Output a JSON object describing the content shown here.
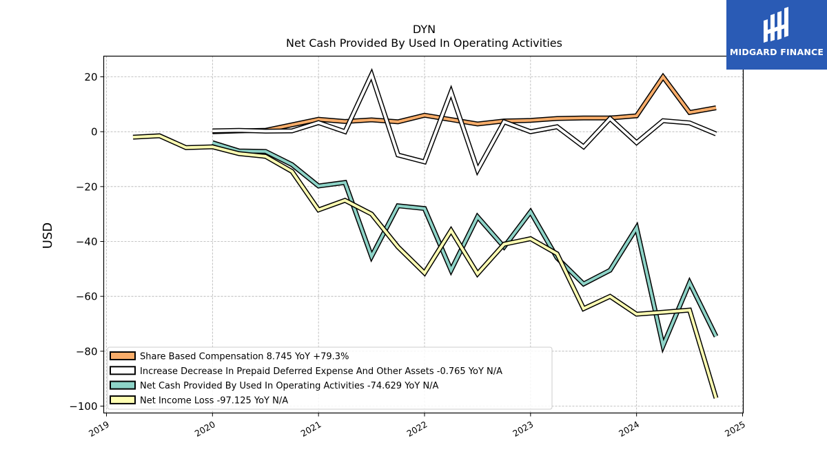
{
  "logo": {
    "text": "MIDGARD FINANCE",
    "bg_color": "#2a5bb5"
  },
  "chart_data": {
    "type": "line",
    "title": "DYN",
    "subtitle": "Net Cash Provided By Used In Operating Activities",
    "ylabel": "USD",
    "xlabel": "",
    "xlim": [
      2019.0,
      2025.0
    ],
    "ylim": [
      -103,
      27.5
    ],
    "xticks": [
      "2019",
      "2020",
      "2021",
      "2022",
      "2023",
      "2024",
      "2025"
    ],
    "yticks": [
      20,
      0,
      -20,
      -40,
      -60,
      -80,
      -100
    ],
    "ytick_labels": [
      "20",
      "0",
      "−20",
      "−40",
      "−60",
      "−80",
      "−100"
    ],
    "grid": true,
    "legend_position": "lower-left",
    "series": [
      {
        "name": "Share Based Compensation",
        "legend_label": "Share Based Compensation  8.745 YoY +79.3%",
        "color": "#f9ad6a",
        "x": [
          2020.0,
          2020.25,
          2020.5,
          2020.75,
          2021.0,
          2021.25,
          2021.5,
          2021.75,
          2022.0,
          2022.25,
          2022.5,
          2022.75,
          2023.0,
          2023.25,
          2023.5,
          2023.75,
          2024.0,
          2024.25,
          2024.5,
          2024.75
        ],
        "values": [
          0.0,
          0.3,
          0.5,
          2.5,
          4.5,
          3.7,
          4.3,
          3.6,
          6.0,
          4.4,
          2.8,
          3.9,
          4.1,
          4.8,
          5.0,
          5.0,
          5.8,
          20.0,
          7.0,
          8.7
        ]
      },
      {
        "name": "Increase Decrease In Prepaid Deferred Expense And Other Assets",
        "legend_label": "Increase Decrease In Prepaid Deferred Expense And Other Assets  -0.765 YoY N/A",
        "color": "#ffffff",
        "x": [
          2020.0,
          2020.25,
          2020.5,
          2020.75,
          2021.0,
          2021.25,
          2021.5,
          2021.75,
          2022.0,
          2022.25,
          2022.5,
          2022.75,
          2023.0,
          2023.25,
          2023.5,
          2023.75,
          2024.0,
          2024.25,
          2024.5,
          2024.75
        ],
        "values": [
          0.3,
          0.5,
          0.2,
          0.3,
          3.3,
          0.0,
          20.8,
          -8.5,
          -11.0,
          14.5,
          -14.0,
          3.6,
          0.0,
          1.8,
          -5.5,
          4.8,
          -4.0,
          4.0,
          3.2,
          -0.8
        ]
      },
      {
        "name": "Net Cash Provided By Used In Operating Activities",
        "legend_label": "Net Cash Provided By Used In Operating Activities  -74.629 YoY N/A",
        "color": "#8dd3c7",
        "x": [
          2020.0,
          2020.25,
          2020.5,
          2020.75,
          2021.0,
          2021.25,
          2021.5,
          2021.75,
          2022.0,
          2022.25,
          2022.5,
          2022.75,
          2023.0,
          2023.25,
          2023.5,
          2023.75,
          2024.0,
          2024.25,
          2024.5,
          2024.75
        ],
        "values": [
          -4.0,
          -7.0,
          -7.2,
          -12.0,
          -19.8,
          -18.5,
          -45.5,
          -27.0,
          -28.0,
          -50.5,
          -31.0,
          -42.0,
          -29.2,
          -46.0,
          -55.5,
          -50.5,
          -35.0,
          -78.0,
          -55.0,
          -74.6
        ]
      },
      {
        "name": "Net Income Loss",
        "legend_label": "Net Income Loss  -97.125 YoY N/A",
        "color": "#ffffb3",
        "x": [
          2019.25,
          2019.5,
          2019.75,
          2020.0,
          2020.25,
          2020.5,
          2020.75,
          2021.0,
          2021.25,
          2021.5,
          2021.75,
          2022.0,
          2022.25,
          2022.5,
          2022.75,
          2023.0,
          2023.25,
          2023.5,
          2023.75,
          2024.0,
          2024.25,
          2024.5,
          2024.75
        ],
        "values": [
          -2.0,
          -1.5,
          -5.8,
          -5.5,
          -8.0,
          -9.0,
          -14.5,
          -28.5,
          -25.0,
          -30.0,
          -42.0,
          -51.5,
          -36.0,
          -51.8,
          -41.0,
          -39.0,
          -44.5,
          -64.5,
          -60.0,
          -66.5,
          -65.8,
          -65.0,
          -97.1
        ]
      }
    ]
  }
}
